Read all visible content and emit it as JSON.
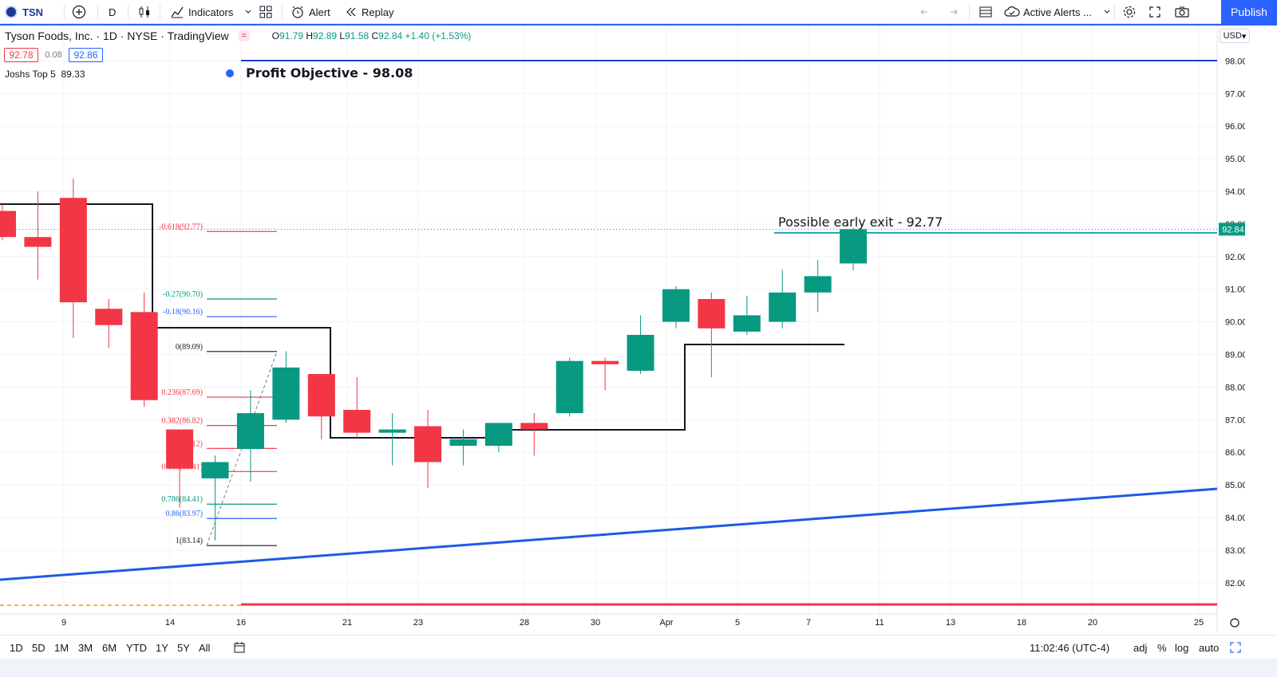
{
  "toolbar": {
    "symbol": "TSN",
    "interval": "D",
    "indicators_label": "Indicators",
    "alert_label": "Alert",
    "replay_label": "Replay",
    "active_alerts_label": "Active Alerts ...",
    "publish_label": "Publish"
  },
  "legend": {
    "title": "Tyson Foods, Inc. · 1D · NYSE · TradingView",
    "open_key": "O",
    "open": "91.79",
    "high_key": "H",
    "high": "92.89",
    "low_key": "L",
    "low": "91.58",
    "close_key": "C",
    "close": "92.84",
    "change": "+1.40 (+1.53%)",
    "bid": "92.78",
    "spread": "0.08",
    "ask": "92.86",
    "indicator_name": "Joshs Top 5",
    "indicator_value": "89.33"
  },
  "currency": "USD",
  "annotations": {
    "profit_objective": "Profit Objective - 98.08",
    "early_exit": "Possible early exit - 92.77"
  },
  "chart_data": {
    "type": "candlestick",
    "y_range": [
      81.4,
      98.7
    ],
    "y_ticks": [
      "98.00",
      "97.00",
      "96.00",
      "95.00",
      "94.00",
      "93.00",
      "92.00",
      "91.00",
      "90.00",
      "89.00",
      "88.00",
      "87.00",
      "86.00",
      "85.00",
      "84.00",
      "83.00",
      "82.00"
    ],
    "x_ticks": [
      "9",
      "14",
      "16",
      "21",
      "23",
      "28",
      "30",
      "Apr",
      "5",
      "7",
      "11",
      "13",
      "18",
      "20",
      "25"
    ],
    "last_price_label": "92.84",
    "candles": [
      {
        "o": 93.4,
        "h": 93.6,
        "l": 92.5,
        "c": 92.6
      },
      {
        "o": 92.6,
        "h": 94.0,
        "l": 91.3,
        "c": 92.3
      },
      {
        "o": 93.8,
        "h": 94.4,
        "l": 89.5,
        "c": 90.6
      },
      {
        "o": 90.4,
        "h": 90.7,
        "l": 89.2,
        "c": 89.9
      },
      {
        "o": 90.3,
        "h": 90.9,
        "l": 87.4,
        "c": 87.6
      },
      {
        "o": 86.7,
        "h": 86.7,
        "l": 84.3,
        "c": 85.5
      },
      {
        "o": 85.2,
        "h": 85.9,
        "l": 83.3,
        "c": 85.7
      },
      {
        "o": 86.1,
        "h": 87.9,
        "l": 85.1,
        "c": 87.2
      },
      {
        "o": 87.0,
        "h": 89.1,
        "l": 86.9,
        "c": 88.6
      },
      {
        "o": 88.4,
        "h": 88.4,
        "l": 86.4,
        "c": 87.1
      },
      {
        "o": 87.3,
        "h": 88.3,
        "l": 86.4,
        "c": 86.6
      },
      {
        "o": 86.6,
        "h": 87.2,
        "l": 85.6,
        "c": 86.7
      },
      {
        "o": 86.8,
        "h": 87.3,
        "l": 84.9,
        "c": 85.7
      },
      {
        "o": 86.2,
        "h": 86.7,
        "l": 85.6,
        "c": 86.4
      },
      {
        "o": 86.2,
        "h": 86.9,
        "l": 86.0,
        "c": 86.9
      },
      {
        "o": 86.9,
        "h": 87.2,
        "l": 85.9,
        "c": 86.7
      },
      {
        "o": 87.2,
        "h": 88.9,
        "l": 87.1,
        "c": 88.8
      },
      {
        "o": 88.8,
        "h": 88.9,
        "l": 87.9,
        "c": 88.7
      },
      {
        "o": 88.5,
        "h": 90.2,
        "l": 88.4,
        "c": 89.6
      },
      {
        "o": 90.0,
        "h": 91.1,
        "l": 89.8,
        "c": 91.0
      },
      {
        "o": 90.7,
        "h": 90.9,
        "l": 88.3,
        "c": 89.8
      },
      {
        "o": 89.7,
        "h": 90.8,
        "l": 89.6,
        "c": 90.2
      },
      {
        "o": 90.0,
        "h": 91.6,
        "l": 89.8,
        "c": 90.9
      },
      {
        "o": 90.9,
        "h": 91.9,
        "l": 90.3,
        "c": 91.4
      },
      {
        "o": 91.79,
        "h": 92.89,
        "l": 91.58,
        "c": 92.84
      }
    ],
    "fib_levels": [
      {
        "label": "-0.618(92.77)",
        "value": 92.77,
        "color": "#f23645"
      },
      {
        "label": "-0.27(90.70)",
        "value": 90.7,
        "color": "#089981"
      },
      {
        "label": "-0.18(90.16)",
        "value": 90.16,
        "color": "#2962ff"
      },
      {
        "label": "0(89.09)",
        "value": 89.09,
        "color": "#131722"
      },
      {
        "label": "0.236(87.69)",
        "value": 87.69,
        "color": "#f23645"
      },
      {
        "label": "0.382(86.82)",
        "value": 86.82,
        "color": "#f23645"
      },
      {
        "label": "0.5(86.12)",
        "value": 86.12,
        "color": "#f23645"
      },
      {
        "label": "0.618(85.41)",
        "value": 85.41,
        "color": "#f23645"
      },
      {
        "label": "0.786(84.41)",
        "value": 84.41,
        "color": "#089981"
      },
      {
        "label": "0.86(83.97)",
        "value": 83.97,
        "color": "#2962ff"
      },
      {
        "label": "1(83.14)",
        "value": 83.14,
        "color": "#131722"
      }
    ],
    "profit_objective_level": 98.08,
    "early_exit_level": 92.77,
    "stop_level": 81.4,
    "colors": {
      "up": "#089981",
      "down": "#f23645",
      "trend": "#1e5ae6",
      "stop": "#f23645"
    }
  },
  "bottombar": {
    "ranges": [
      "1D",
      "5D",
      "1M",
      "3M",
      "6M",
      "YTD",
      "1Y",
      "5Y",
      "All"
    ],
    "time": "11:02:46 (UTC-4)",
    "adj": "adj",
    "percent": "%",
    "log": "log",
    "auto": "auto"
  }
}
